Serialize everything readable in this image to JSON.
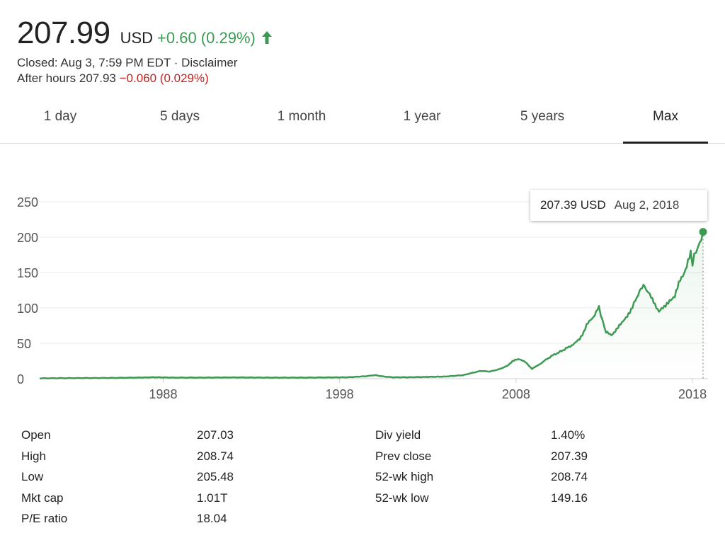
{
  "quote": {
    "price": "207.99",
    "currency": "USD",
    "change": "+0.60 (0.29%)",
    "closed_text": "Closed: Aug 3, 7:59 PM EDT · Disclaimer",
    "after_hours_label": "After hours 207.93",
    "after_hours_change": "−0.060 (0.029%)",
    "colors": {
      "positive": "#3c9a52",
      "negative": "#c5221f",
      "line": "#3c9a52"
    },
    "icon": "arrow-up-icon"
  },
  "tabs": [
    {
      "label": "1 day"
    },
    {
      "label": "5 days"
    },
    {
      "label": "1 month"
    },
    {
      "label": "1 year"
    },
    {
      "label": "5 years"
    },
    {
      "label": "Max",
      "active": true
    }
  ],
  "tooltip": {
    "value": "207.39 USD",
    "date": "Aug 2, 2018"
  },
  "chart_data": {
    "type": "area",
    "x_tick_labels": [
      "1988",
      "1998",
      "2008",
      "2018"
    ],
    "x_tick_values": [
      1988,
      1998,
      2008,
      2018
    ],
    "y_tick_labels": [
      "0",
      "50",
      "100",
      "150",
      "200",
      "250"
    ],
    "y_tick_values": [
      0,
      50,
      100,
      150,
      200,
      250
    ],
    "xlim": [
      1981.0,
      2018.8
    ],
    "ylim": [
      0,
      250
    ],
    "grid": "horizontal",
    "series": [
      {
        "x": [
          1981.0,
          1983.0,
          1985.0,
          1986.5,
          1987.5,
          1988.5,
          1990.0,
          1992.0,
          1994.0,
          1996.0,
          1997.5,
          1998.5,
          1999.5,
          2000.0,
          2000.5,
          2001.0,
          2002.0,
          2003.0,
          2004.0,
          2004.5,
          2005.0,
          2005.5,
          2006.0,
          2006.5,
          2007.0,
          2007.5,
          2007.8,
          2008.2,
          2008.6,
          2008.9,
          2009.2,
          2009.6,
          2010.0,
          2010.5,
          2011.0,
          2011.3,
          2011.6,
          2012.0,
          2012.3,
          2012.7,
          2012.9,
          2013.1,
          2013.4,
          2013.7,
          2014.0,
          2014.3,
          2014.6,
          2015.0,
          2015.3,
          2015.5,
          2015.8,
          2016.1,
          2016.4,
          2016.7,
          2017.0,
          2017.3,
          2017.6,
          2017.9,
          2018.0,
          2018.2,
          2018.4,
          2018.6
        ],
        "y": [
          0.5,
          0.8,
          1.0,
          1.5,
          2.0,
          1.5,
          1.5,
          1.8,
          1.5,
          1.5,
          1.8,
          2.0,
          3.5,
          5.0,
          3.0,
          2.0,
          2.0,
          2.5,
          3.0,
          4.0,
          5.0,
          8.0,
          11.0,
          10.0,
          13.0,
          18.0,
          25.0,
          28.0,
          22.0,
          14.0,
          18.0,
          25.0,
          32.0,
          38.0,
          45.0,
          50.0,
          55.0,
          75.0,
          85.0,
          100.0,
          82.0,
          65.0,
          62.0,
          70.0,
          78.0,
          90.0,
          100.0,
          125.0,
          130.0,
          120.0,
          110.0,
          95.0,
          100.0,
          112.0,
          115.0,
          140.0,
          155.0,
          175.0,
          165.0,
          180.0,
          190.0,
          207.39
        ]
      }
    ],
    "highlight_point": {
      "x": 2018.6,
      "y": 207.39
    }
  },
  "stats_left": [
    {
      "label": "Open",
      "value": "207.03"
    },
    {
      "label": "High",
      "value": "208.74"
    },
    {
      "label": "Low",
      "value": "205.48"
    },
    {
      "label": "Mkt cap",
      "value": "1.01T"
    },
    {
      "label": "P/E ratio",
      "value": "18.04"
    }
  ],
  "stats_right": [
    {
      "label": "Div yield",
      "value": "1.40%"
    },
    {
      "label": "Prev close",
      "value": "207.39"
    },
    {
      "label": "52-wk high",
      "value": "208.74"
    },
    {
      "label": "52-wk low",
      "value": "149.16"
    }
  ]
}
